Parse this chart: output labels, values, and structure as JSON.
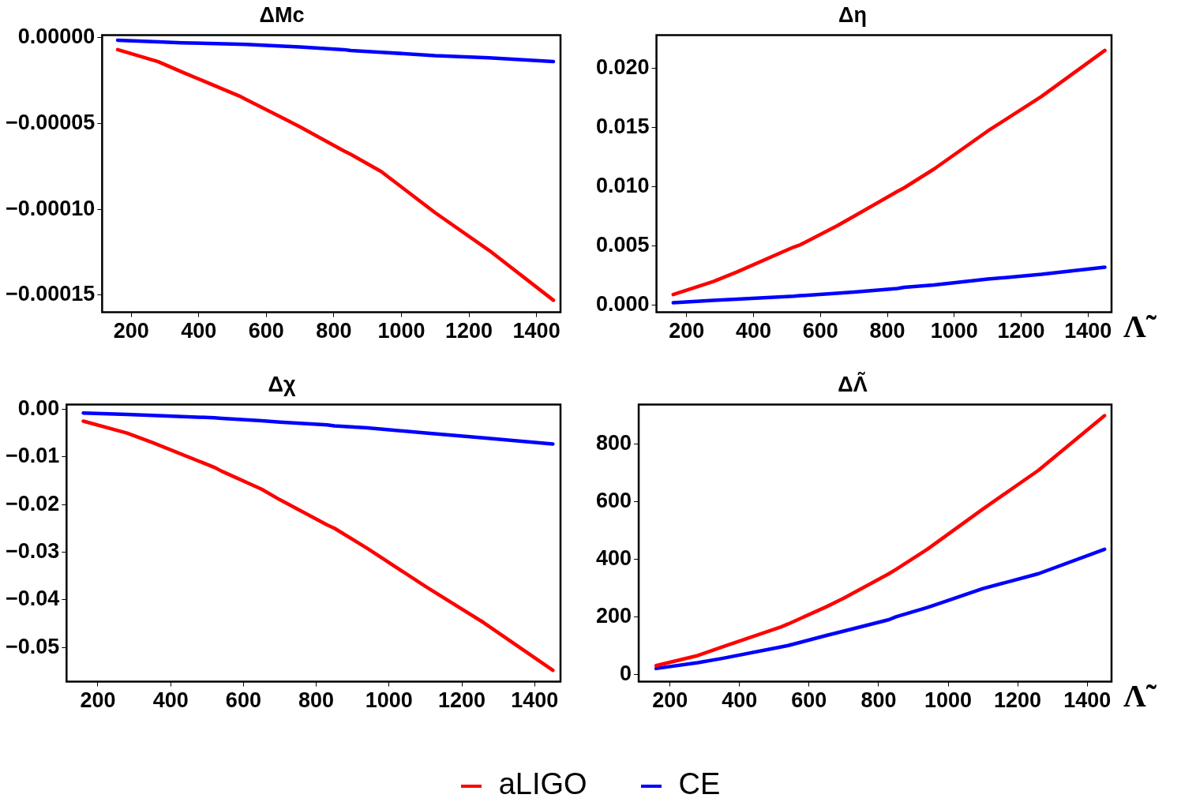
{
  "chart_data": [
    {
      "type": "line",
      "title": "ΔMc",
      "x": [
        160,
        280,
        350,
        520,
        540,
        650,
        700,
        830,
        850,
        940,
        1100,
        1260,
        1450
      ],
      "xlim": [
        114,
        1471
      ],
      "xticks": [
        200,
        400,
        600,
        800,
        1000,
        1200,
        1400
      ],
      "ylim": [
        -0.00016,
        1.5e-06
      ],
      "yticks": [
        {
          "value": 0,
          "label": "0.00000"
        },
        {
          "value": -5e-05,
          "label": "−0.00005"
        },
        {
          "value": -0.0001,
          "label": "−0.00010"
        },
        {
          "value": -0.00015,
          "label": "−0.00015"
        }
      ],
      "grid": false,
      "marker": "none",
      "series": [
        {
          "color": "#ff0000",
          "values": [
            -7e-06,
            -1.4e-05,
            -2e-05,
            -3.4e-05,
            -3.6e-05,
            -4.7e-05,
            -5.2e-05,
            -6.6e-05,
            -6.8e-05,
            -7.8e-05,
            -0.000102,
            -0.000124,
            -0.000153
          ]
        },
        {
          "color": "#0000ff",
          "values": [
            -1.5e-06,
            -2.5e-06,
            -3e-06,
            -3.8e-06,
            -4e-06,
            -5e-06,
            -5.5e-06,
            -7e-06,
            -7.5e-06,
            -8.5e-06,
            -1.05e-05,
            -1.18e-05,
            -1.4e-05
          ]
        }
      ]
    },
    {
      "type": "line",
      "title": "Δη",
      "xlabel": "Λ̃",
      "x": [
        160,
        280,
        350,
        520,
        540,
        650,
        700,
        830,
        850,
        940,
        1100,
        1260,
        1450
      ],
      "xlim": [
        110,
        1470
      ],
      "xticks": [
        200,
        400,
        600,
        800,
        1000,
        1200,
        1400
      ],
      "ylim": [
        -0.0006,
        0.0228
      ],
      "yticks": [
        {
          "value": 0,
          "label": "0.000"
        },
        {
          "value": 0.005,
          "label": "0.005"
        },
        {
          "value": 0.01,
          "label": "0.010"
        },
        {
          "value": 0.015,
          "label": "0.015"
        },
        {
          "value": 0.02,
          "label": "0.020"
        }
      ],
      "grid": false,
      "marker": "none",
      "series": [
        {
          "color": "#ff0000",
          "values": [
            0.0009,
            0.002,
            0.0028,
            0.0049,
            0.0051,
            0.0067,
            0.0075,
            0.0096,
            0.0099,
            0.0115,
            0.0147,
            0.0176,
            0.0215
          ]
        },
        {
          "color": "#0000ff",
          "values": [
            0.0002,
            0.0004,
            0.0005,
            0.00075,
            0.0008,
            0.001,
            0.0011,
            0.0014,
            0.0015,
            0.0017,
            0.0022,
            0.0026,
            0.0032
          ]
        }
      ]
    },
    {
      "type": "line",
      "title": "Δχ",
      "x": [
        160,
        280,
        350,
        520,
        540,
        650,
        700,
        830,
        850,
        940,
        1100,
        1260,
        1450
      ],
      "xlim": [
        114,
        1471
      ],
      "xticks": [
        200,
        400,
        600,
        800,
        1000,
        1200,
        1400
      ],
      "ylim": [
        -0.0572,
        0.001
      ],
      "yticks": [
        {
          "value": 0,
          "label": "0.00"
        },
        {
          "value": -0.01,
          "label": "−0.01"
        },
        {
          "value": -0.02,
          "label": "−0.02"
        },
        {
          "value": -0.03,
          "label": "−0.03"
        },
        {
          "value": -0.04,
          "label": "−0.04"
        },
        {
          "value": -0.05,
          "label": "−0.05"
        }
      ],
      "grid": false,
      "marker": "none",
      "series": [
        {
          "color": "#ff0000",
          "values": [
            -0.0025,
            -0.005,
            -0.007,
            -0.0122,
            -0.013,
            -0.0168,
            -0.019,
            -0.0243,
            -0.025,
            -0.0292,
            -0.0372,
            -0.0448,
            -0.0548
          ]
        },
        {
          "color": "#0000ff",
          "values": [
            -0.0008,
            -0.0011,
            -0.0013,
            -0.0018,
            -0.0019,
            -0.0024,
            -0.0027,
            -0.0033,
            -0.0035,
            -0.0039,
            -0.005,
            -0.006,
            -0.0073
          ]
        }
      ]
    },
    {
      "type": "line",
      "title": "ΔΛ̃",
      "xlabel": "Λ̃",
      "x": [
        160,
        280,
        350,
        520,
        540,
        650,
        700,
        830,
        850,
        940,
        1100,
        1260,
        1450
      ],
      "xlim": [
        110,
        1470
      ],
      "xticks": [
        200,
        400,
        600,
        800,
        1000,
        1200,
        1400
      ],
      "ylim": [
        -26,
        939
      ],
      "yticks": [
        0,
        200,
        400,
        600,
        800
      ],
      "grid": false,
      "marker": "none",
      "legend": "bottom",
      "series": [
        {
          "name": "aLIGO",
          "color": "#ff0000",
          "values": [
            30,
            65,
            95,
            165,
            175,
            235,
            265,
            350,
            365,
            435,
            575,
            710,
            900
          ]
        },
        {
          "name": "CE",
          "color": "#0000ff",
          "values": [
            20,
            40,
            55,
            95,
            100,
            135,
            150,
            190,
            200,
            232,
            298,
            350,
            435
          ]
        }
      ]
    }
  ]
}
